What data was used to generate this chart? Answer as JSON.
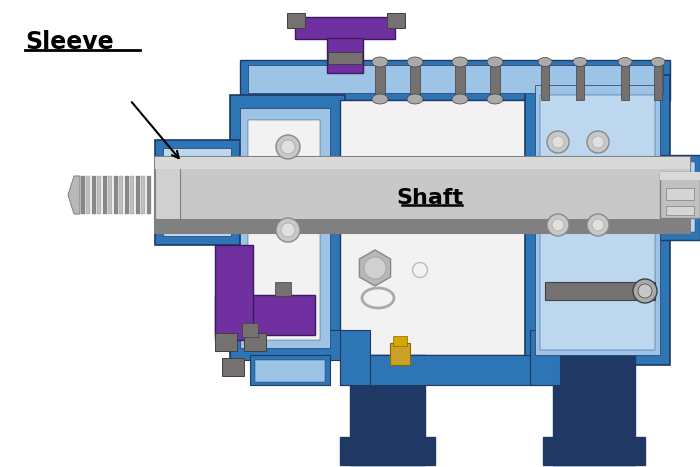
{
  "background_color": "#ffffff",
  "sleeve_label": "Sleeve",
  "shaft_label": "Shaft",
  "fig_width": 7.0,
  "fig_height": 4.67,
  "dpi": 100,
  "colors": {
    "blue_main": "#4472c4",
    "blue_dark": "#1f3864",
    "blue_mid": "#2e75b6",
    "blue_light": "#9dc3e6",
    "blue_lighter": "#bdd7ee",
    "purple": "#7030a0",
    "purple_light": "#9966cc",
    "gray_shaft_light": "#d9d9d9",
    "gray_shaft_mid": "#c0c0c0",
    "gray_shaft_dark": "#808080",
    "gray_bolt": "#767171",
    "gray_dark": "#404040",
    "white_box": "#f2f2f2",
    "yellow": "#c9a227",
    "black": "#000000"
  }
}
